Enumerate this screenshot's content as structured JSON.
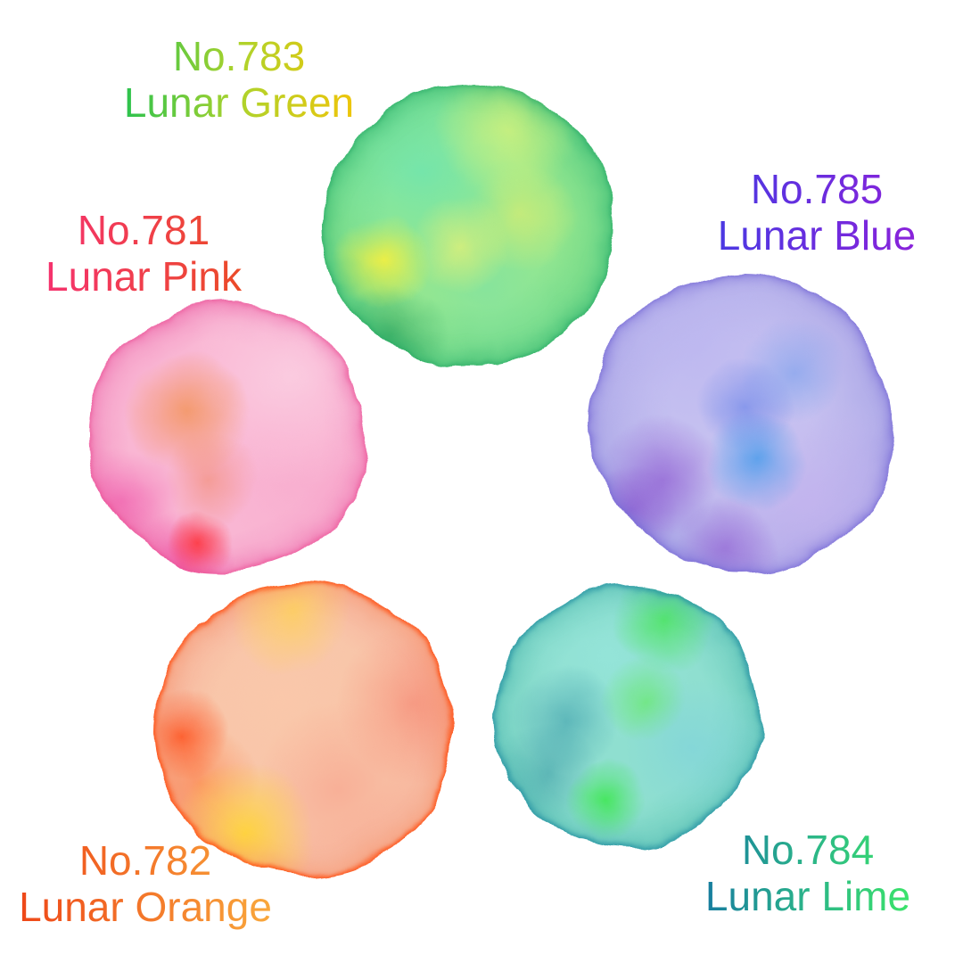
{
  "page": {
    "background": "#ffffff",
    "description": "Five round watercolor paint swatches on white with gradient-colored number and name labels"
  },
  "swatches": [
    {
      "number": "No.781",
      "name": "Lunar Pink",
      "label_gradient": [
        "#f5326e",
        "#eb4b28"
      ],
      "paint": {
        "base": "#f8aed0",
        "edge": "#ee56a2",
        "accents": [
          "#f2955c",
          "#ff2b2b",
          "#ee3d9a",
          "#fbd0e2"
        ]
      }
    },
    {
      "number": "No.782",
      "name": "Lunar Orange",
      "label_gradient": [
        "#ee4718",
        "#f9a83c"
      ],
      "paint": {
        "base": "#f7bda4",
        "edge": "#ff5014",
        "accents": [
          "#ffd64e",
          "#ff7a30",
          "#f59f92"
        ]
      }
    },
    {
      "number": "No.783",
      "name": "Lunar Green",
      "label_gradient": [
        "#2bc24e",
        "#aed32c",
        "#eec50a"
      ],
      "paint": {
        "base": "#8ce08d",
        "edge": "#2fae67",
        "accents": [
          "#f4ec55",
          "#62d9a8",
          "#baf06e"
        ]
      }
    },
    {
      "number": "No.784",
      "name": "Lunar Lime",
      "label_gradient": [
        "#177d9f",
        "#2bb489",
        "#3be46a"
      ],
      "paint": {
        "base": "#7fd5c6",
        "edge": "#2391a7",
        "accents": [
          "#49e455",
          "#74c7de",
          "#1e8ba1"
        ]
      }
    },
    {
      "number": "No.785",
      "name": "Lunar Blue",
      "label_gradient": [
        "#4a38e2",
        "#8a22da"
      ],
      "paint": {
        "base": "#aba6e7",
        "edge": "#7c70d8",
        "accents": [
          "#3496eb",
          "#823cc8",
          "#c7c3f0"
        ]
      }
    }
  ]
}
